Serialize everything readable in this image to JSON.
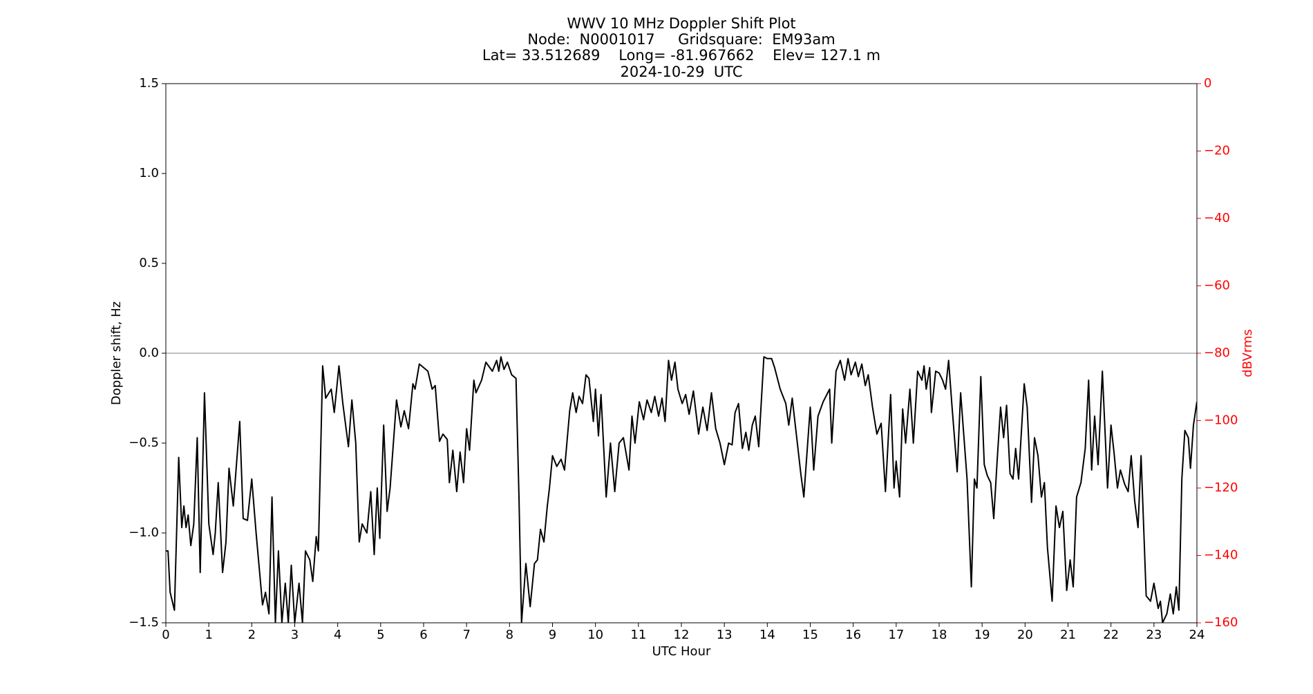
{
  "chart_data": {
    "type": "line",
    "title": [
      "WWV 10 MHz Doppler Shift Plot",
      "Node:  N0001017     Gridsquare:  EM93am",
      "Lat= 33.512689    Long= -81.967662    Elev= 127.1 m",
      "2024-10-29  UTC"
    ],
    "x_label": "UTC Hour",
    "y_label": "Doppler shift, Hz",
    "y2_label": "dBVrms",
    "color": "#000000",
    "y2_color": "#ff0000",
    "hline": 0,
    "xlim": [
      0,
      24
    ],
    "xticks": [
      0,
      1,
      2,
      3,
      4,
      5,
      6,
      7,
      8,
      9,
      10,
      11,
      12,
      13,
      14,
      15,
      16,
      17,
      18,
      19,
      20,
      21,
      22,
      23,
      24
    ],
    "ylim": [
      -1.5,
      1.5
    ],
    "yticks": [
      {
        "value": -1.5,
        "label": "−1.5"
      },
      {
        "value": -1.0,
        "label": "−1.0"
      },
      {
        "value": -0.5,
        "label": "−0.5"
      },
      {
        "value": 0,
        "label": "0.0"
      },
      0.5,
      {
        "value": 1.0,
        "label": "1.0"
      },
      1.5
    ],
    "y2lim": [
      -160,
      0
    ],
    "y2ticks": [
      {
        "value": 0,
        "label": "0"
      },
      {
        "value": -20,
        "label": "−20"
      },
      {
        "value": -40,
        "label": "−40"
      },
      {
        "value": -60,
        "label": "−60"
      },
      {
        "value": -80,
        "label": "−80"
      },
      {
        "value": -100,
        "label": "−100"
      },
      {
        "value": -120,
        "label": "−120"
      },
      {
        "value": -140,
        "label": "−140"
      },
      {
        "value": -160,
        "label": "−160"
      }
    ],
    "x": [
      0,
      0.05,
      0.1,
      0.2,
      0.3,
      0.37,
      0.42,
      0.47,
      0.52,
      0.58,
      0.65,
      0.73,
      0.8,
      0.9,
      1.0,
      1.1,
      1.15,
      1.22,
      1.32,
      1.4,
      1.47,
      1.57,
      1.72,
      1.8,
      1.9,
      2.0,
      2.1,
      2.25,
      2.32,
      2.4,
      2.47,
      2.55,
      2.62,
      2.7,
      2.78,
      2.85,
      2.92,
      3.0,
      3.1,
      3.18,
      3.25,
      3.35,
      3.42,
      3.5,
      3.55,
      3.65,
      3.72,
      3.85,
      3.92,
      4.03,
      4.12,
      4.25,
      4.33,
      4.42,
      4.5,
      4.57,
      4.68,
      4.77,
      4.85,
      4.92,
      4.98,
      5.07,
      5.15,
      5.22,
      5.37,
      5.47,
      5.55,
      5.65,
      5.75,
      5.8,
      5.9,
      6.1,
      6.2,
      6.27,
      6.37,
      6.45,
      6.55,
      6.6,
      6.68,
      6.77,
      6.85,
      6.93,
      7.0,
      7.07,
      7.17,
      7.22,
      7.35,
      7.45,
      7.6,
      7.7,
      7.75,
      7.8,
      7.87,
      7.95,
      8.05,
      8.15,
      8.22,
      8.28,
      8.38,
      8.48,
      8.58,
      8.65,
      8.72,
      8.8,
      8.88,
      8.93,
      9.0,
      9.1,
      9.2,
      9.28,
      9.4,
      9.47,
      9.55,
      9.62,
      9.7,
      9.78,
      9.85,
      9.95,
      10.0,
      10.07,
      10.13,
      10.25,
      10.35,
      10.45,
      10.55,
      10.65,
      10.78,
      10.85,
      10.92,
      11.02,
      11.12,
      11.2,
      11.3,
      11.38,
      11.47,
      11.55,
      11.62,
      11.7,
      11.77,
      11.85,
      11.92,
      12.02,
      12.1,
      12.18,
      12.28,
      12.4,
      12.5,
      12.6,
      12.7,
      12.8,
      12.9,
      13.0,
      13.1,
      13.18,
      13.25,
      13.33,
      13.42,
      13.5,
      13.57,
      13.65,
      13.72,
      13.8,
      13.92,
      14.0,
      14.1,
      14.17,
      14.3,
      14.43,
      14.5,
      14.58,
      14.7,
      14.78,
      14.85,
      15.0,
      15.08,
      15.18,
      15.3,
      15.45,
      15.5,
      15.6,
      15.7,
      15.8,
      15.88,
      15.95,
      16.05,
      16.12,
      16.2,
      16.28,
      16.35,
      16.45,
      16.55,
      16.65,
      16.75,
      16.87,
      16.95,
      17.0,
      17.08,
      17.15,
      17.22,
      17.32,
      17.4,
      17.5,
      17.6,
      17.65,
      17.7,
      17.78,
      17.82,
      17.92,
      18.0,
      18.08,
      18.15,
      18.22,
      18.3,
      18.42,
      18.5,
      18.65,
      18.75,
      18.82,
      18.88,
      18.97,
      19.05,
      19.12,
      19.2,
      19.27,
      19.35,
      19.43,
      19.5,
      19.57,
      19.65,
      19.72,
      19.78,
      19.85,
      19.98,
      20.05,
      20.15,
      20.22,
      20.3,
      20.38,
      20.45,
      20.52,
      20.63,
      20.72,
      20.8,
      20.88,
      20.97,
      21.05,
      21.12,
      21.2,
      21.3,
      21.4,
      21.48,
      21.55,
      21.62,
      21.7,
      21.8,
      21.92,
      22.0,
      22.07,
      22.15,
      22.22,
      22.32,
      22.4,
      22.47,
      22.55,
      22.63,
      22.7,
      22.82,
      22.92,
      23.0,
      23.1,
      23.15,
      23.2,
      23.3,
      23.38,
      23.45,
      23.52,
      23.58,
      23.65,
      23.72,
      23.8,
      23.85,
      23.92,
      24.0
    ],
    "values": [
      -1.1,
      -1.1,
      -1.33,
      -1.43,
      -0.58,
      -0.97,
      -0.85,
      -0.97,
      -0.9,
      -1.07,
      -0.95,
      -0.47,
      -1.22,
      -0.22,
      -0.95,
      -1.12,
      -1.0,
      -0.72,
      -1.22,
      -1.05,
      -0.64,
      -0.85,
      -0.38,
      -0.92,
      -0.93,
      -0.7,
      -1.0,
      -1.4,
      -1.33,
      -1.45,
      -0.8,
      -1.5,
      -1.1,
      -1.5,
      -1.28,
      -1.5,
      -1.18,
      -1.5,
      -1.28,
      -1.5,
      -1.1,
      -1.15,
      -1.27,
      -1.02,
      -1.1,
      -0.07,
      -0.25,
      -0.2,
      -0.33,
      -0.07,
      -0.28,
      -0.52,
      -0.26,
      -0.5,
      -1.05,
      -0.95,
      -1.0,
      -0.77,
      -1.12,
      -0.75,
      -1.03,
      -0.4,
      -0.88,
      -0.75,
      -0.26,
      -0.41,
      -0.32,
      -0.42,
      -0.17,
      -0.2,
      -0.06,
      -0.1,
      -0.2,
      -0.18,
      -0.49,
      -0.45,
      -0.48,
      -0.72,
      -0.54,
      -0.77,
      -0.55,
      -0.72,
      -0.42,
      -0.54,
      -0.15,
      -0.22,
      -0.15,
      -0.05,
      -0.1,
      -0.04,
      -0.1,
      -0.02,
      -0.09,
      -0.05,
      -0.12,
      -0.14,
      -0.8,
      -1.5,
      -1.17,
      -1.41,
      -1.17,
      -1.15,
      -0.98,
      -1.05,
      -0.85,
      -0.75,
      -0.57,
      -0.63,
      -0.59,
      -0.65,
      -0.32,
      -0.22,
      -0.33,
      -0.24,
      -0.28,
      -0.12,
      -0.14,
      -0.38,
      -0.2,
      -0.46,
      -0.23,
      -0.8,
      -0.5,
      -0.77,
      -0.5,
      -0.47,
      -0.65,
      -0.35,
      -0.5,
      -0.27,
      -0.37,
      -0.26,
      -0.33,
      -0.24,
      -0.35,
      -0.25,
      -0.38,
      -0.04,
      -0.15,
      -0.05,
      -0.2,
      -0.28,
      -0.23,
      -0.34,
      -0.21,
      -0.45,
      -0.3,
      -0.43,
      -0.22,
      -0.42,
      -0.5,
      -0.62,
      -0.5,
      -0.51,
      -0.33,
      -0.28,
      -0.53,
      -0.44,
      -0.54,
      -0.4,
      -0.35,
      -0.52,
      -0.02,
      -0.03,
      -0.03,
      -0.08,
      -0.2,
      -0.28,
      -0.4,
      -0.25,
      -0.5,
      -0.67,
      -0.8,
      -0.3,
      -0.65,
      -0.35,
      -0.27,
      -0.2,
      -0.5,
      -0.1,
      -0.04,
      -0.15,
      -0.03,
      -0.12,
      -0.05,
      -0.13,
      -0.06,
      -0.18,
      -0.12,
      -0.3,
      -0.45,
      -0.39,
      -0.77,
      -0.23,
      -0.75,
      -0.6,
      -0.8,
      -0.31,
      -0.5,
      -0.2,
      -0.5,
      -0.1,
      -0.15,
      -0.07,
      -0.2,
      -0.08,
      -0.33,
      -0.1,
      -0.11,
      -0.15,
      -0.2,
      -0.04,
      -0.3,
      -0.66,
      -0.22,
      -0.7,
      -1.3,
      -0.7,
      -0.75,
      -0.13,
      -0.62,
      -0.68,
      -0.72,
      -0.92,
      -0.6,
      -0.3,
      -0.47,
      -0.29,
      -0.67,
      -0.7,
      -0.53,
      -0.7,
      -0.17,
      -0.3,
      -0.83,
      -0.47,
      -0.57,
      -0.8,
      -0.72,
      -1.08,
      -1.38,
      -0.85,
      -0.97,
      -0.88,
      -1.32,
      -1.15,
      -1.3,
      -0.8,
      -0.72,
      -0.53,
      -0.15,
      -0.65,
      -0.35,
      -0.62,
      -0.1,
      -0.75,
      -0.4,
      -0.55,
      -0.75,
      -0.65,
      -0.73,
      -0.77,
      -0.57,
      -0.82,
      -0.97,
      -0.57,
      -1.35,
      -1.38,
      -1.28,
      -1.42,
      -1.38,
      -1.5,
      -1.45,
      -1.34,
      -1.45,
      -1.3,
      -1.43,
      -0.7,
      -0.43,
      -0.47,
      -0.64,
      -0.4,
      -0.27
    ]
  }
}
